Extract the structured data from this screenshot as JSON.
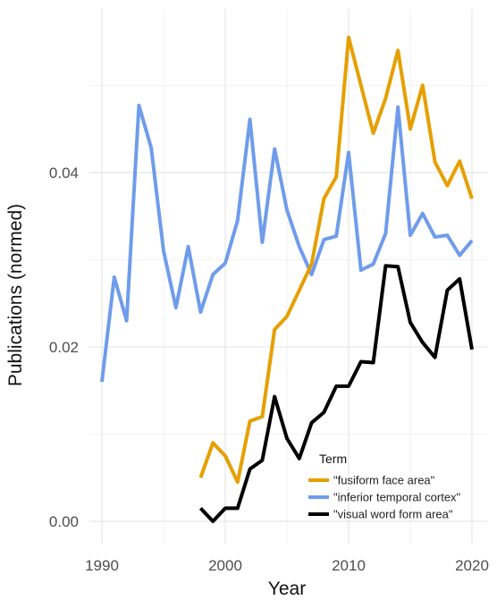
{
  "chart_data": {
    "type": "line",
    "title": "",
    "xlabel": "Year",
    "ylabel": "Publications (normed)",
    "xlim": [
      1990,
      2020
    ],
    "ylim": [
      0,
      0.0565
    ],
    "grid": true,
    "legend_title": "Term",
    "legend_position": "bottom-right (inside plot)",
    "x_ticks": [
      1990,
      2000,
      2010,
      2020
    ],
    "x_tick_labels": [
      "1990",
      "2000",
      "2010",
      "2020"
    ],
    "y_ticks": [
      0.0,
      0.02,
      0.04
    ],
    "y_tick_labels": [
      "0.00",
      "0.02",
      "0.04"
    ],
    "series": [
      {
        "name": "\"fusiform face area\"",
        "color": "#E69F00",
        "x": [
          1998,
          1999,
          2000,
          2001,
          2002,
          2003,
          2004,
          2005,
          2006,
          2007,
          2008,
          2009,
          2010,
          2011,
          2012,
          2013,
          2014,
          2015,
          2016,
          2017,
          2018,
          2019,
          2020
        ],
        "y": [
          0.005,
          0.009,
          0.0075,
          0.0045,
          0.0115,
          0.012,
          0.022,
          0.0235,
          0.0265,
          0.0295,
          0.037,
          0.0395,
          0.0555,
          0.05,
          0.0445,
          0.0485,
          0.054,
          0.045,
          0.05,
          0.0412,
          0.0385,
          0.0413,
          0.037
        ]
      },
      {
        "name": "\"inferior temporal cortex\"",
        "color": "#6F9CEB",
        "x": [
          1990,
          1991,
          1992,
          1993,
          1994,
          1995,
          1996,
          1997,
          1998,
          1999,
          2000,
          2001,
          2002,
          2003,
          2004,
          2005,
          2006,
          2007,
          2008,
          2009,
          2010,
          2011,
          2012,
          2013,
          2014,
          2015,
          2016,
          2017,
          2018,
          2019,
          2020
        ],
        "y": [
          0.016,
          0.028,
          0.023,
          0.0477,
          0.0428,
          0.031,
          0.0245,
          0.0315,
          0.024,
          0.0283,
          0.0296,
          0.0345,
          0.0461,
          0.032,
          0.0427,
          0.0357,
          0.0315,
          0.0283,
          0.0323,
          0.0327,
          0.0423,
          0.0288,
          0.0295,
          0.033,
          0.0475,
          0.0328,
          0.0353,
          0.0326,
          0.0328,
          0.0305,
          0.0322
        ]
      },
      {
        "name": "\"visual word form area\"",
        "color": "#000000",
        "x": [
          1998,
          1999,
          2000,
          2001,
          2002,
          2003,
          2004,
          2005,
          2006,
          2007,
          2008,
          2009,
          2010,
          2011,
          2012,
          2013,
          2014,
          2015,
          2016,
          2017,
          2018,
          2019,
          2020
        ],
        "y": [
          0.0015,
          0.0,
          0.0015,
          0.0015,
          0.006,
          0.007,
          0.0143,
          0.0095,
          0.0072,
          0.0113,
          0.0125,
          0.0155,
          0.0155,
          0.0183,
          0.0182,
          0.0293,
          0.0292,
          0.0228,
          0.0205,
          0.0188,
          0.0265,
          0.0278,
          0.0197
        ]
      }
    ]
  }
}
